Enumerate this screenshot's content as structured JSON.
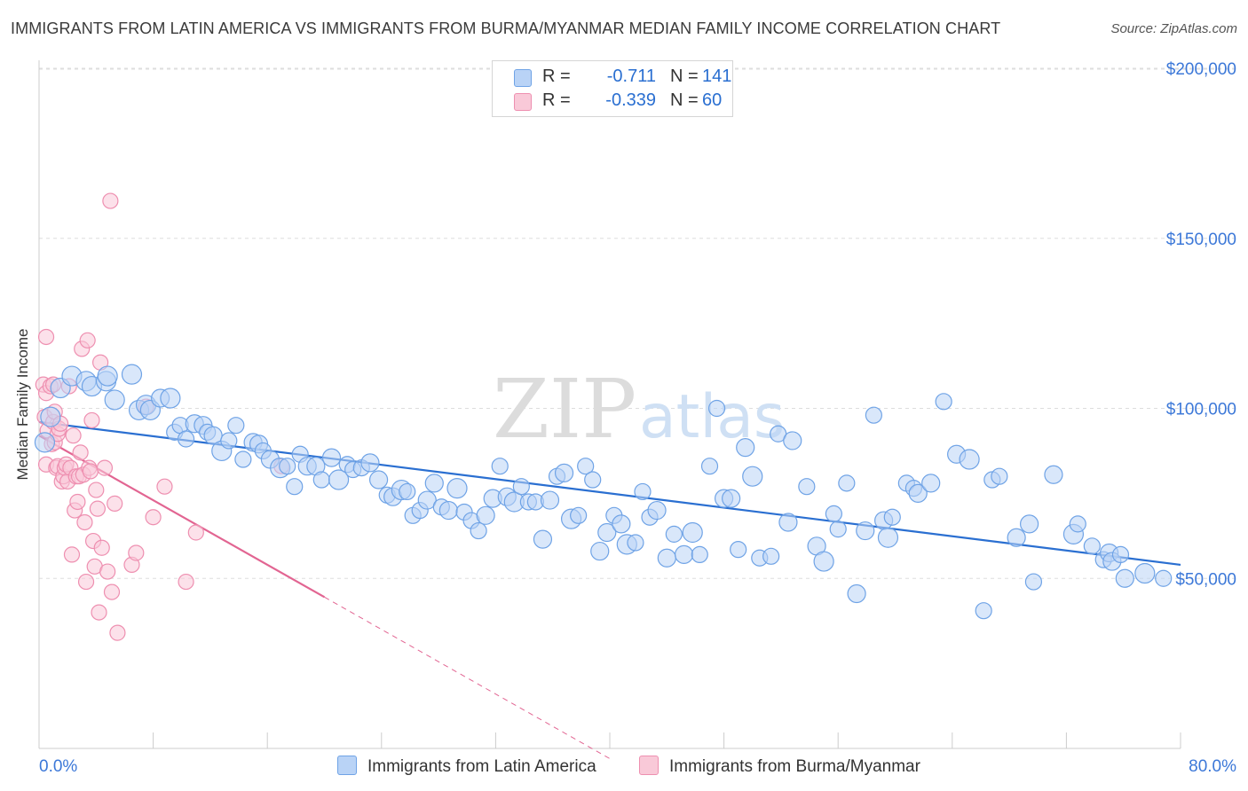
{
  "title": "IMMIGRANTS FROM LATIN AMERICA VS IMMIGRANTS FROM BURMA/MYANMAR MEDIAN FAMILY INCOME CORRELATION CHART",
  "source": "Source: ZipAtlas.com",
  "watermark": {
    "zip": "ZIP",
    "atlas": "atlas"
  },
  "colors": {
    "blue": "#6fa3e6",
    "blue_fill": "#b9d3f6",
    "blue_line": "#2a6fd1",
    "pink": "#ee8fb0",
    "pink_fill": "#f9c9d8",
    "pink_line": "#e26592",
    "axis_text": "#3c78d8",
    "grid": "#dddddd"
  },
  "legend": {
    "series1": {
      "r_label": "R =",
      "r_value": "-0.711",
      "n_label": "N =",
      "n_value": "141"
    },
    "series2": {
      "r_label": "R =",
      "r_value": "-0.339",
      "n_label": "N =",
      "n_value": "60"
    }
  },
  "chart_data": {
    "type": "scatter",
    "title": "IMMIGRANTS FROM LATIN AMERICA VS IMMIGRANTS FROM BURMA/MYANMAR MEDIAN FAMILY INCOME CORRELATION CHART",
    "xlabel": "",
    "ylabel": "Median Family Income",
    "xlim": [
      0,
      80
    ],
    "ylim": [
      0,
      210000
    ],
    "x_tick_labels": [
      "0.0%",
      "80.0%"
    ],
    "y_ticks": [
      50000,
      100000,
      150000,
      200000
    ],
    "y_tick_labels": [
      "$50,000",
      "$100,000",
      "$150,000",
      "$200,000"
    ],
    "grid": true,
    "legend_position": "bottom",
    "series": [
      {
        "name": "Immigrants from Latin America",
        "color": "#6fa3e6",
        "trend": {
          "x": [
            0,
            80
          ],
          "y": [
            96000,
            54000
          ]
        },
        "points": [
          [
            0.4,
            90000
          ],
          [
            0.8,
            97500
          ],
          [
            1.5,
            106000
          ],
          [
            2.3,
            109500
          ],
          [
            3.3,
            108000
          ],
          [
            3.7,
            106500
          ],
          [
            4.7,
            108000
          ],
          [
            4.8,
            109500
          ],
          [
            5.3,
            102500
          ],
          [
            6.5,
            110000
          ],
          [
            7.0,
            99500
          ],
          [
            7.5,
            101000
          ],
          [
            7.8,
            99500
          ],
          [
            8.5,
            103000
          ],
          [
            9.2,
            103000
          ],
          [
            9.5,
            93000
          ],
          [
            9.9,
            95000
          ],
          [
            10.3,
            91000
          ],
          [
            10.9,
            95500
          ],
          [
            11.5,
            95000
          ],
          [
            11.8,
            93000
          ],
          [
            12.2,
            92000
          ],
          [
            12.8,
            87500
          ],
          [
            13.3,
            90500
          ],
          [
            13.8,
            95000
          ],
          [
            14.3,
            85000
          ],
          [
            15.0,
            90000
          ],
          [
            15.4,
            89500
          ],
          [
            15.7,
            87500
          ],
          [
            16.2,
            85000
          ],
          [
            16.9,
            82500
          ],
          [
            17.4,
            83000
          ],
          [
            17.9,
            77000
          ],
          [
            18.3,
            86500
          ],
          [
            18.8,
            83000
          ],
          [
            19.4,
            83000
          ],
          [
            19.8,
            79000
          ],
          [
            20.5,
            85500
          ],
          [
            21.0,
            79000
          ],
          [
            21.6,
            83500
          ],
          [
            22.0,
            82000
          ],
          [
            22.6,
            82500
          ],
          [
            23.2,
            84000
          ],
          [
            23.8,
            79000
          ],
          [
            24.4,
            74500
          ],
          [
            24.8,
            74000
          ],
          [
            25.4,
            76000
          ],
          [
            25.8,
            75500
          ],
          [
            26.2,
            68500
          ],
          [
            26.7,
            70000
          ],
          [
            27.2,
            73000
          ],
          [
            27.7,
            78000
          ],
          [
            28.2,
            71000
          ],
          [
            28.7,
            70000
          ],
          [
            29.3,
            76500
          ],
          [
            29.8,
            69500
          ],
          [
            30.3,
            67000
          ],
          [
            30.8,
            64000
          ],
          [
            31.3,
            68500
          ],
          [
            31.8,
            73500
          ],
          [
            32.3,
            83000
          ],
          [
            32.8,
            74000
          ],
          [
            33.3,
            72500
          ],
          [
            33.8,
            77000
          ],
          [
            34.3,
            72500
          ],
          [
            34.8,
            72500
          ],
          [
            35.3,
            61500
          ],
          [
            35.8,
            73000
          ],
          [
            36.3,
            80000
          ],
          [
            36.8,
            81000
          ],
          [
            37.3,
            67500
          ],
          [
            37.8,
            68500
          ],
          [
            38.3,
            83000
          ],
          [
            38.8,
            79000
          ],
          [
            39.3,
            58000
          ],
          [
            39.8,
            63500
          ],
          [
            40.3,
            68500
          ],
          [
            40.8,
            66000
          ],
          [
            41.2,
            60000
          ],
          [
            41.8,
            60500
          ],
          [
            42.3,
            75500
          ],
          [
            42.8,
            68000
          ],
          [
            43.3,
            70000
          ],
          [
            44.0,
            56000
          ],
          [
            44.5,
            63000
          ],
          [
            45.2,
            57000
          ],
          [
            45.8,
            63500
          ],
          [
            46.3,
            57000
          ],
          [
            47.0,
            83000
          ],
          [
            47.5,
            100000
          ],
          [
            48.0,
            73500
          ],
          [
            48.5,
            73500
          ],
          [
            49.0,
            58500
          ],
          [
            49.5,
            88500
          ],
          [
            50.0,
            80000
          ],
          [
            50.5,
            56000
          ],
          [
            51.3,
            56500
          ],
          [
            51.8,
            92500
          ],
          [
            52.5,
            66500
          ],
          [
            52.8,
            90500
          ],
          [
            53.8,
            77000
          ],
          [
            54.5,
            59500
          ],
          [
            55.0,
            55000
          ],
          [
            55.7,
            69000
          ],
          [
            56.0,
            64500
          ],
          [
            56.6,
            78000
          ],
          [
            57.3,
            45500
          ],
          [
            57.9,
            64000
          ],
          [
            58.5,
            98000
          ],
          [
            59.2,
            67000
          ],
          [
            59.5,
            62000
          ],
          [
            59.8,
            68000
          ],
          [
            60.8,
            78000
          ],
          [
            61.3,
            76500
          ],
          [
            61.6,
            75000
          ],
          [
            62.5,
            78000
          ],
          [
            63.4,
            102000
          ],
          [
            64.3,
            86500
          ],
          [
            65.2,
            85000
          ],
          [
            66.2,
            40500
          ],
          [
            66.8,
            79000
          ],
          [
            67.3,
            80000
          ],
          [
            68.5,
            62000
          ],
          [
            69.4,
            66000
          ],
          [
            69.7,
            49000
          ],
          [
            71.1,
            80500
          ],
          [
            72.5,
            63000
          ],
          [
            72.8,
            66000
          ],
          [
            73.8,
            59500
          ],
          [
            74.6,
            55500
          ],
          [
            75.0,
            57500
          ],
          [
            75.2,
            55000
          ],
          [
            75.8,
            57000
          ],
          [
            76.1,
            50000
          ],
          [
            77.5,
            51500
          ],
          [
            78.8,
            50000
          ]
        ]
      },
      {
        "name": "Immigrants from Burma/Myanmar",
        "color": "#ee8fb0",
        "trend": {
          "x": [
            0,
            20
          ],
          "y": [
            92000,
            44500
          ]
        },
        "trend_dashed": {
          "x": [
            20,
            40
          ],
          "y": [
            44500,
            -3000
          ]
        },
        "points": [
          [
            0.3,
            107000
          ],
          [
            0.4,
            97500
          ],
          [
            0.5,
            104500
          ],
          [
            0.5,
            83500
          ],
          [
            0.5,
            121000
          ],
          [
            0.6,
            93500
          ],
          [
            0.8,
            106500
          ],
          [
            0.9,
            89500
          ],
          [
            1.0,
            107000
          ],
          [
            1.0,
            96000
          ],
          [
            1.1,
            99000
          ],
          [
            1.1,
            90000
          ],
          [
            1.2,
            82500
          ],
          [
            1.3,
            92500
          ],
          [
            1.3,
            83000
          ],
          [
            1.4,
            94000
          ],
          [
            1.5,
            95500
          ],
          [
            1.6,
            78500
          ],
          [
            1.7,
            80000
          ],
          [
            1.8,
            82500
          ],
          [
            1.9,
            83500
          ],
          [
            2.0,
            78500
          ],
          [
            2.1,
            106500
          ],
          [
            2.2,
            82500
          ],
          [
            2.3,
            57000
          ],
          [
            2.4,
            92000
          ],
          [
            2.5,
            70000
          ],
          [
            2.6,
            80000
          ],
          [
            2.7,
            72500
          ],
          [
            2.8,
            80000
          ],
          [
            2.9,
            87000
          ],
          [
            3.0,
            117500
          ],
          [
            3.1,
            80500
          ],
          [
            3.2,
            66500
          ],
          [
            3.3,
            49000
          ],
          [
            3.4,
            120000
          ],
          [
            3.5,
            82500
          ],
          [
            3.6,
            81500
          ],
          [
            3.7,
            96500
          ],
          [
            3.8,
            61000
          ],
          [
            3.9,
            53500
          ],
          [
            4.0,
            76000
          ],
          [
            4.1,
            70500
          ],
          [
            4.2,
            40000
          ],
          [
            4.3,
            113500
          ],
          [
            4.4,
            59000
          ],
          [
            4.6,
            82500
          ],
          [
            4.8,
            52000
          ],
          [
            5.0,
            161000
          ],
          [
            5.1,
            46000
          ],
          [
            5.3,
            72000
          ],
          [
            5.5,
            34000
          ],
          [
            6.5,
            54000
          ],
          [
            6.8,
            57500
          ],
          [
            7.5,
            100500
          ],
          [
            8.0,
            68000
          ],
          [
            8.8,
            77000
          ],
          [
            10.3,
            49000
          ],
          [
            11.0,
            63500
          ],
          [
            17.0,
            83000
          ]
        ]
      }
    ]
  },
  "bottom_legend": {
    "item1": "Immigrants from Latin America",
    "item2": "Immigrants from Burma/Myanmar"
  }
}
